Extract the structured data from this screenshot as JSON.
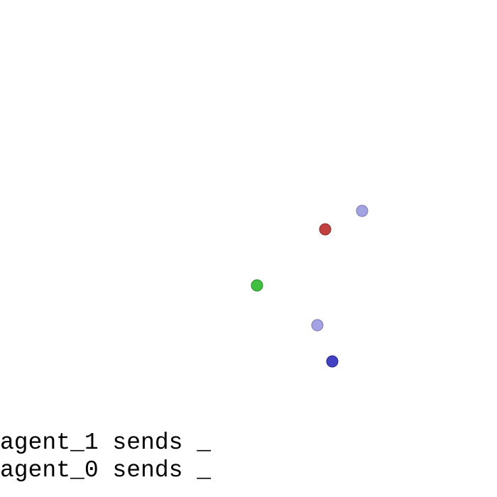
{
  "messages": [
    "agent_1 sends _",
    "agent_0 sends _"
  ]
}
